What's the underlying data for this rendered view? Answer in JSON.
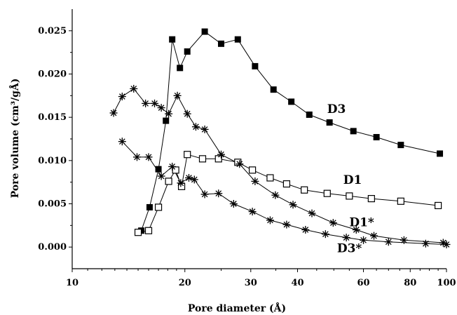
{
  "chart_data": {
    "type": "scatter",
    "title": "",
    "xlabel": "Pore diameter (Å)",
    "ylabel": "Pore volume (cm³/gÅ)",
    "x_scale": "log",
    "xlim": [
      10,
      100
    ],
    "ylim": [
      -0.0025,
      0.0275
    ],
    "x_ticks": [
      10,
      20,
      30,
      40,
      60,
      80,
      100
    ],
    "y_ticks": [
      0.0,
      0.005,
      0.01,
      0.015,
      0.02,
      0.025
    ],
    "x_tick_labels": [
      "10",
      "20",
      "30",
      "40",
      "60",
      "80",
      "100"
    ],
    "y_tick_labels": [
      "0.000",
      "0.005",
      "0.010",
      "0.015",
      "0.020",
      "0.025"
    ],
    "grid": false,
    "series": [
      {
        "name": "D3",
        "marker": "filled-square",
        "x": [
          15.3,
          16.1,
          17.0,
          17.8,
          18.5,
          19.4,
          20.3,
          22.6,
          25.0,
          27.7,
          30.8,
          34.5,
          38.5,
          43.0,
          48.7,
          56.4,
          65.0,
          75.5,
          96.0
        ],
        "y": [
          0.0019,
          0.0046,
          0.009,
          0.0146,
          0.024,
          0.0207,
          0.0226,
          0.0249,
          0.0235,
          0.024,
          0.0209,
          0.0182,
          0.0168,
          0.0153,
          0.0144,
          0.0134,
          0.0127,
          0.0118,
          0.0108
        ]
      },
      {
        "name": "D1",
        "marker": "open-square",
        "x": [
          15.0,
          16.0,
          17.0,
          18.1,
          18.9,
          19.6,
          20.3,
          22.3,
          24.6,
          27.7,
          30.3,
          33.8,
          37.4,
          41.7,
          48.0,
          55.0,
          63.0,
          75.5,
          95.0
        ],
        "y": [
          0.0017,
          0.0019,
          0.0046,
          0.0076,
          0.0089,
          0.007,
          0.0107,
          0.0102,
          0.0102,
          0.0098,
          0.0089,
          0.008,
          0.0073,
          0.0066,
          0.0062,
          0.0059,
          0.0056,
          0.0053,
          0.0048
        ]
      },
      {
        "name": "D1*",
        "marker": "asterisk",
        "x": [
          12.9,
          13.6,
          14.6,
          15.7,
          16.6,
          17.3,
          18.1,
          19.1,
          20.3,
          21.4,
          22.6,
          25.0,
          28.0,
          30.8,
          34.9,
          38.9,
          43.7,
          49.8,
          57.4,
          64.0,
          77.0,
          98.0
        ],
        "y": [
          0.0155,
          0.0174,
          0.0183,
          0.0166,
          0.0166,
          0.0161,
          0.0154,
          0.0175,
          0.0154,
          0.0139,
          0.0136,
          0.0107,
          0.0096,
          0.0076,
          0.006,
          0.0049,
          0.0039,
          0.0028,
          0.002,
          0.0013,
          0.0008,
          0.0005
        ]
      },
      {
        "name": "D3*",
        "marker": "asterisk",
        "x": [
          13.6,
          14.9,
          16.0,
          17.3,
          18.5,
          19.5,
          20.5,
          21.2,
          22.6,
          24.6,
          27.0,
          30.3,
          33.8,
          37.4,
          42.0,
          47.5,
          54.0,
          60.0,
          70.0,
          88.0,
          100.0
        ],
        "y": [
          0.0122,
          0.0104,
          0.0104,
          0.0082,
          0.0093,
          0.0074,
          0.008,
          0.0078,
          0.0061,
          0.0062,
          0.005,
          0.0041,
          0.0031,
          0.0026,
          0.002,
          0.0015,
          0.0011,
          0.0008,
          0.0006,
          0.0004,
          0.0003
        ]
      }
    ],
    "series_labels": [
      {
        "series": "D3",
        "text": "D3",
        "anchor_x": 48.0,
        "anchor_y": 0.0155
      },
      {
        "series": "D1",
        "text": "D1",
        "anchor_x": 53.0,
        "anchor_y": 0.0073
      },
      {
        "series": "D1*",
        "text": "D1*",
        "anchor_x": 55.0,
        "anchor_y": 0.0024
      },
      {
        "series": "D3*",
        "text": "D3*",
        "anchor_x": 51.0,
        "anchor_y": -0.0006
      }
    ]
  }
}
